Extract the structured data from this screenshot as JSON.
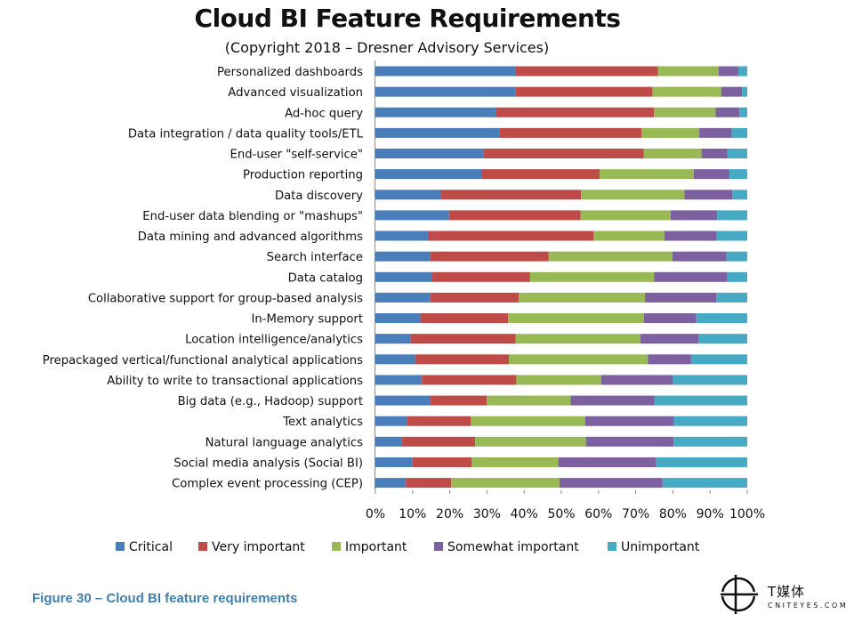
{
  "colors": {
    "critical": "#4a7ebb",
    "very_important": "#be4b48",
    "important": "#98b954",
    "somewhat_important": "#7d60a0",
    "unimportant": "#46aac5"
  },
  "caption": "Figure 30 – Cloud BI feature requirements",
  "brand": {
    "name": "T媒体",
    "sub": "CNITEYES.COM",
    "icon": "brand-logo-icon"
  },
  "chart_data": {
    "type": "bar",
    "orientation": "horizontal",
    "stacked": true,
    "normalized": true,
    "title": "Cloud BI Feature Requirements",
    "subtitle": "(Copyright 2018 – Dresner Advisory Services)",
    "xlabel": "",
    "ylabel": "",
    "xlim": [
      0,
      100
    ],
    "x_ticks": [
      "0%",
      "10%",
      "20%",
      "30%",
      "40%",
      "50%",
      "60%",
      "70%",
      "80%",
      "90%",
      "100%"
    ],
    "legend_position": "bottom",
    "categories": [
      "Personalized dashboards",
      "Advanced visualization",
      "Ad-hoc query",
      "Data integration / data quality tools/ETL",
      "End-user \"self-service\"",
      "Production reporting",
      "Data discovery",
      "End-user data blending or \"mashups\"",
      "Data mining and advanced algorithms",
      "Search interface",
      "Data catalog",
      "Collaborative support for group-based analysis",
      "In-Memory support",
      "Location intelligence/analytics",
      "Prepackaged vertical/functional analytical applications",
      "Ability to write to transactional applications",
      "Big data (e.g., Hadoop) support",
      "Text analytics",
      "Natural language analytics",
      "Social media analysis (Social BI)",
      "Complex event processing (CEP)"
    ],
    "series": [
      {
        "name": "Critical",
        "color_key": "critical",
        "values": [
          37.7,
          37.6,
          32.5,
          33.3,
          29.0,
          28.6,
          17.7,
          19.8,
          14.1,
          14.8,
          15.2,
          14.8,
          12.1,
          9.5,
          10.7,
          12.5,
          14.8,
          8.6,
          7.2,
          10.0,
          8.2
        ]
      },
      {
        "name": "Very important",
        "color_key": "very_important",
        "values": [
          38.3,
          36.9,
          42.4,
          38.3,
          43.2,
          31.7,
          37.6,
          35.4,
          44.6,
          31.8,
          26.4,
          23.8,
          23.6,
          28.2,
          25.2,
          25.4,
          15.1,
          17.0,
          19.6,
          15.9,
          12.2
        ]
      },
      {
        "name": "Important",
        "color_key": "important",
        "values": [
          16.3,
          18.5,
          16.6,
          15.5,
          15.5,
          25.3,
          27.8,
          24.2,
          19.0,
          33.3,
          33.4,
          33.9,
          36.5,
          33.6,
          37.4,
          22.8,
          22.6,
          30.8,
          29.8,
          23.3,
          29.1
        ]
      },
      {
        "name": "Somewhat important",
        "color_key": "somewhat_important",
        "values": [
          5.3,
          5.6,
          6.4,
          8.7,
          7.0,
          9.6,
          12.9,
          12.5,
          14.1,
          14.5,
          19.6,
          19.2,
          14.1,
          15.7,
          11.6,
          19.3,
          22.5,
          23.9,
          23.6,
          26.2,
          27.7
        ]
      },
      {
        "name": "Unimportant",
        "color_key": "unimportant",
        "values": [
          2.4,
          1.4,
          2.1,
          4.2,
          5.3,
          4.8,
          4.0,
          8.1,
          8.2,
          5.6,
          5.4,
          8.3,
          13.7,
          13.0,
          15.1,
          20.0,
          25.0,
          19.7,
          19.8,
          24.6,
          22.8
        ]
      }
    ]
  }
}
